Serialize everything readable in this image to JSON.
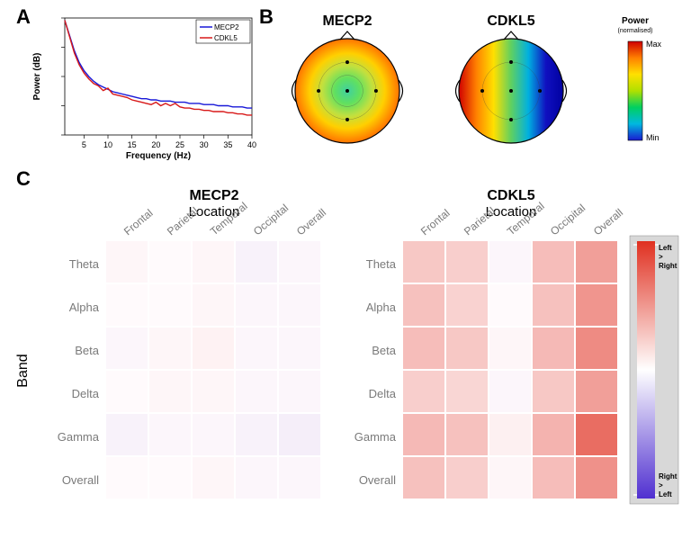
{
  "panels": {
    "A": "A",
    "B": "B",
    "C": "C"
  },
  "panelA": {
    "type": "line",
    "xlabel": "Frequency (Hz)",
    "ylabel": "Power (dB)",
    "xlim": [
      1,
      40
    ],
    "ylim": [
      0,
      100
    ],
    "xticks": [
      5,
      10,
      15,
      20,
      25,
      30,
      35,
      40
    ],
    "legend": [
      {
        "label": "MECP2",
        "color": "#1818d8"
      },
      {
        "label": "CDKL5",
        "color": "#d81818"
      }
    ],
    "series": {
      "MECP2": {
        "color": "#1818d8",
        "x": [
          1,
          2,
          3,
          4,
          5,
          6,
          7,
          8,
          9,
          10,
          11,
          12,
          13,
          14,
          15,
          16,
          17,
          18,
          19,
          20,
          21,
          22,
          23,
          24,
          25,
          26,
          27,
          28,
          29,
          30,
          31,
          32,
          33,
          34,
          35,
          36,
          37,
          38,
          39,
          40
        ],
        "y": [
          98,
          85,
          72,
          62,
          55,
          50,
          46,
          43,
          41,
          39,
          37,
          36,
          35,
          34,
          33,
          32,
          31,
          31,
          30,
          30,
          29,
          29,
          29,
          28,
          28,
          28,
          27,
          27,
          27,
          26,
          26,
          26,
          25,
          25,
          25,
          24,
          24,
          24,
          23,
          23
        ]
      },
      "CDKL5": {
        "color": "#d81818",
        "x": [
          1,
          2,
          3,
          4,
          5,
          6,
          7,
          8,
          9,
          10,
          11,
          12,
          13,
          14,
          15,
          16,
          17,
          18,
          19,
          20,
          21,
          22,
          23,
          24,
          25,
          26,
          27,
          28,
          29,
          30,
          31,
          32,
          33,
          34,
          35,
          36,
          37,
          38,
          39,
          40
        ],
        "y": [
          98,
          84,
          70,
          60,
          53,
          48,
          44,
          42,
          38,
          40,
          35,
          34,
          33,
          32,
          30,
          29,
          28,
          27,
          26,
          28,
          25,
          27,
          25,
          27,
          24,
          23,
          23,
          22,
          22,
          21,
          21,
          20,
          20,
          20,
          19,
          19,
          18,
          18,
          17,
          17
        ]
      }
    }
  },
  "panelB": {
    "titles": {
      "left": "MECP2",
      "right": "CDKL5"
    },
    "colorbar": {
      "title": "Power",
      "subtitle": "(normalised)",
      "top": "Max",
      "bottom": "Min"
    },
    "stops": [
      "#1a1ad0",
      "#00b8e0",
      "#00d060",
      "#b0e000",
      "#ffe000",
      "#ff8000",
      "#d00000"
    ]
  },
  "panelC": {
    "titles": {
      "left": "MECP2",
      "right": "CDKL5"
    },
    "location_label": "Location",
    "band_label": "Band",
    "cols": [
      "Frontal",
      "Parietal",
      "Temporal",
      "Occipital",
      "Overall"
    ],
    "rows": [
      "Theta",
      "Alpha",
      "Beta",
      "Delta",
      "Gamma",
      "Overall"
    ],
    "mecp2": [
      [
        0.02,
        0.0,
        0.02,
        -0.04,
        -0.02
      ],
      [
        0.0,
        0.0,
        0.02,
        -0.02,
        -0.02
      ],
      [
        -0.02,
        0.02,
        0.04,
        -0.02,
        -0.02
      ],
      [
        0.0,
        0.02,
        0.02,
        -0.02,
        -0.02
      ],
      [
        -0.04,
        -0.02,
        -0.02,
        -0.04,
        -0.06
      ],
      [
        0.0,
        0.0,
        0.02,
        -0.02,
        -0.02
      ]
    ],
    "cdkl5": [
      [
        0.25,
        0.22,
        -0.02,
        0.3,
        0.45
      ],
      [
        0.28,
        0.2,
        0.0,
        0.28,
        0.5
      ],
      [
        0.3,
        0.25,
        0.02,
        0.32,
        0.55
      ],
      [
        0.22,
        0.18,
        -0.02,
        0.25,
        0.45
      ],
      [
        0.32,
        0.28,
        0.05,
        0.35,
        0.7
      ],
      [
        0.28,
        0.22,
        0.02,
        0.3,
        0.52
      ]
    ],
    "colorbar": {
      "top": "Left\n>\nRight",
      "bottom": "Right\n>\nLeft",
      "pos_color": "#e03020",
      "neg_color": "#5030d0",
      "mid_color": "#ffffff",
      "bg": "#d8d8d8"
    }
  }
}
